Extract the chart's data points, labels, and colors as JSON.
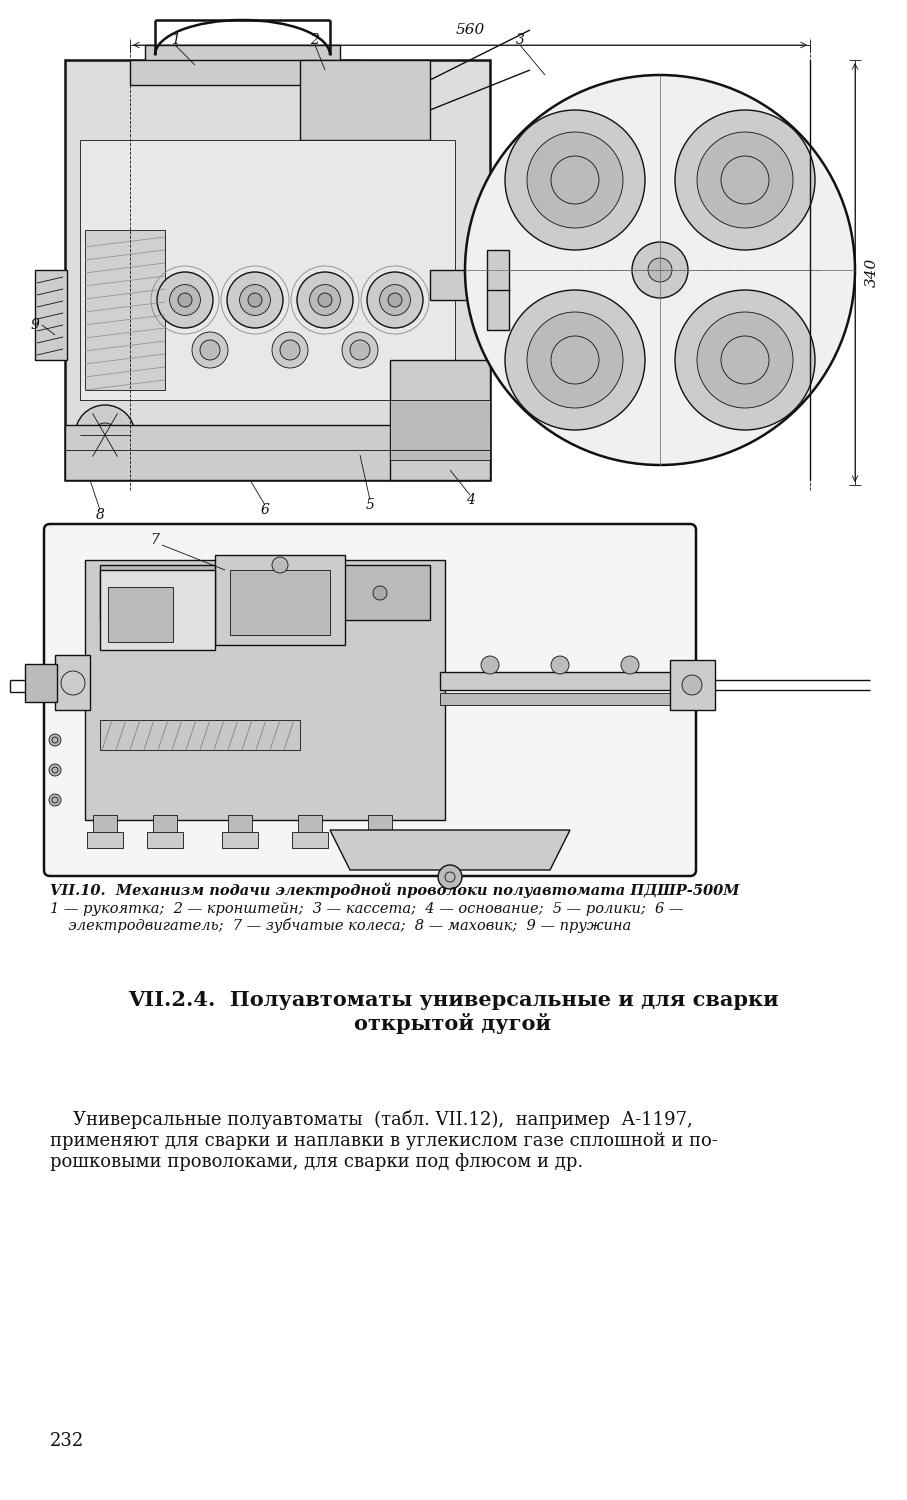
{
  "bg_color": "#ffffff",
  "title": "VII.2.4.  Полуавтоматы универсальные и для сварки\nоткрытой дугой",
  "title_fontsize": 15,
  "body_text": "    Универсальные полуавтоматы  (табл. VII.12),  например  А-1197,\nприменяют для сварки и наплавки в углекислом газе сплошной и по-\nрошковыми проволоками, для сварки под флюсом и др.",
  "body_fontsize": 13,
  "caption_title": "VII.10.  Механизм подачи электродной проволоки полуавтомата ПДШР-500М",
  "caption_body": "1 — рукоятка;  2 — кронштейн;  3 — кассета;  4 — основание;  5 — ролики;  6 —\n    электродвигатель;  7 — зубчатые колеса;  8 — маховик;  9 — пружина",
  "caption_fontsize": 10.5,
  "page_number": "232",
  "dim_560": "560",
  "dim_340": "340"
}
